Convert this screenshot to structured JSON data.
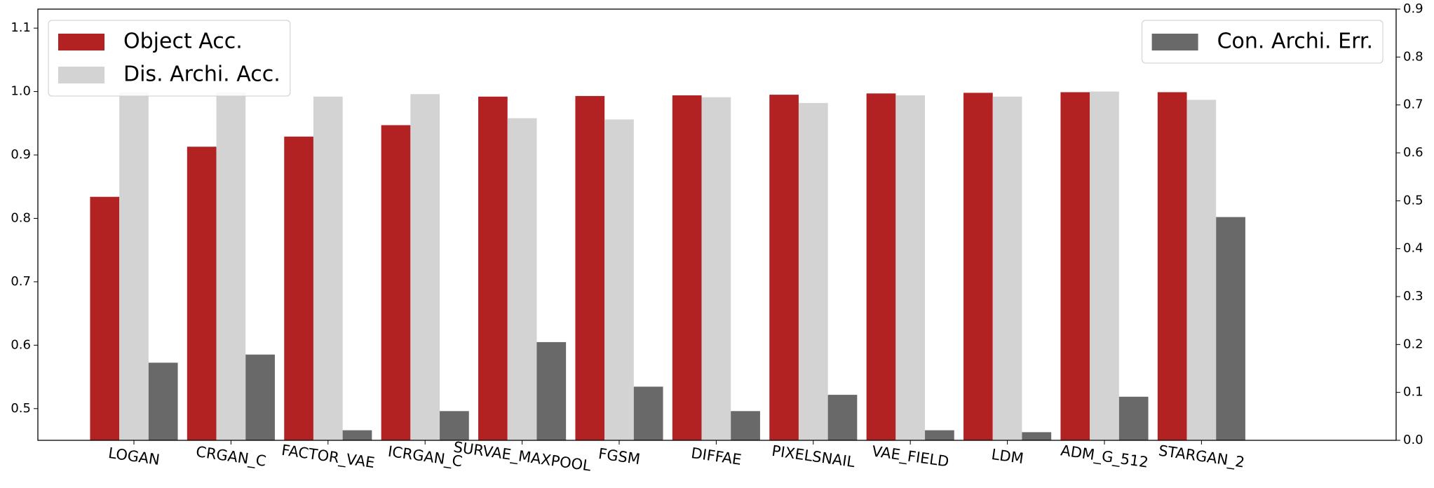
{
  "chart_data": {
    "type": "bar",
    "categories": [
      "LOGAN",
      "CRGAN_C",
      "FACTOR_VAE",
      "ICRGAN_C",
      "SURVAE_MAXPOOL",
      "FGSM",
      "DIFFAE",
      "PIXELSNAIL",
      "VAE_FIELD",
      "LDM",
      "ADM_G_512",
      "STARGAN_2"
    ],
    "series": [
      {
        "name": "Object Acc.",
        "color": "#b22222",
        "values": [
          0.834,
          0.913,
          0.929,
          0.947,
          0.992,
          0.993,
          0.994,
          0.995,
          0.997,
          0.998,
          0.999,
          0.999
        ]
      },
      {
        "name": "Dis. Archi. Acc.",
        "color": "#d3d3d3",
        "values": [
          0.999,
          0.999,
          0.992,
          0.996,
          0.958,
          0.956,
          0.991,
          0.982,
          0.994,
          0.992,
          1.0,
          0.987
        ]
      },
      {
        "name": "Con. Archi. Err.",
        "color": "#696969",
        "axis": "y2",
        "values": [
          0.162,
          0.179,
          0.021,
          0.061,
          0.205,
          0.112,
          0.061,
          0.095,
          0.021,
          0.017,
          0.091,
          0.466
        ]
      }
    ],
    "ylim": [
      0.45,
      1.13
    ],
    "yticks": [
      0.5,
      0.6,
      0.7,
      0.8,
      0.9,
      {
        "value": 1,
        "label": "1.0"
      },
      1.1
    ],
    "y2lim": [
      0,
      0.9
    ],
    "y2ticks": [
      {
        "value": 0,
        "label": "0.0"
      },
      0.1,
      0.2,
      0.3,
      0.4,
      0.5,
      0.6,
      0.7,
      0.8,
      0.9
    ],
    "legend": "upper left"
  }
}
